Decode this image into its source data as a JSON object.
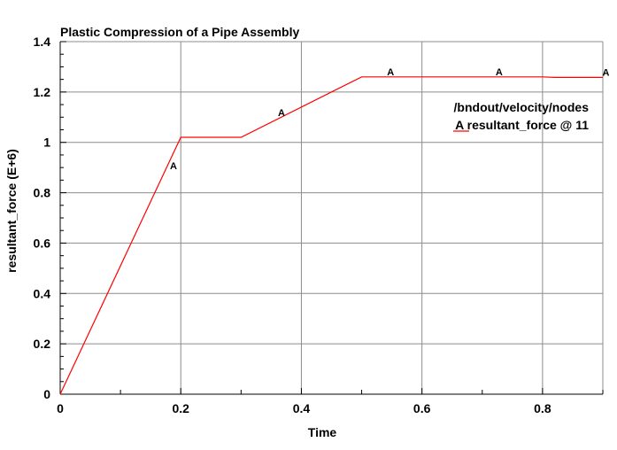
{
  "chart_data": {
    "type": "line",
    "title": "Plastic Compression of a Pipe Assembly",
    "xlabel": "Time",
    "ylabel": "resultant_force (E+6)",
    "xlim": [
      0,
      0.9
    ],
    "ylim": [
      0,
      1.4
    ],
    "x_ticks": [
      "0",
      "0.2",
      "0.4",
      "0.6",
      "0.8"
    ],
    "y_ticks": [
      "0",
      "0.2",
      "0.4",
      "0.6",
      "0.8",
      "1",
      "1.2",
      "1.4"
    ],
    "grid": true,
    "legend": {
      "placement": "top-right",
      "header": "/bndout/velocity/nodes",
      "entries": [
        {
          "marker": "A",
          "label": "resultant_force @ 11"
        }
      ]
    },
    "series": [
      {
        "name": "resultant_force @ 11",
        "marker": "A",
        "color": "#ff0000",
        "x": [
          0,
          0.2,
          0.21,
          0.3,
          0.5,
          0.8,
          0.82,
          0.9
        ],
        "y": [
          0,
          1.02,
          1.02,
          1.02,
          1.26,
          1.26,
          1.258,
          1.258
        ],
        "marker_x": [
          0.185,
          0.364,
          0.545,
          0.725,
          0.905
        ]
      }
    ],
    "colors": {
      "series": "#ff0000",
      "grid": "#8c8c8c",
      "axis": "#000000"
    }
  }
}
